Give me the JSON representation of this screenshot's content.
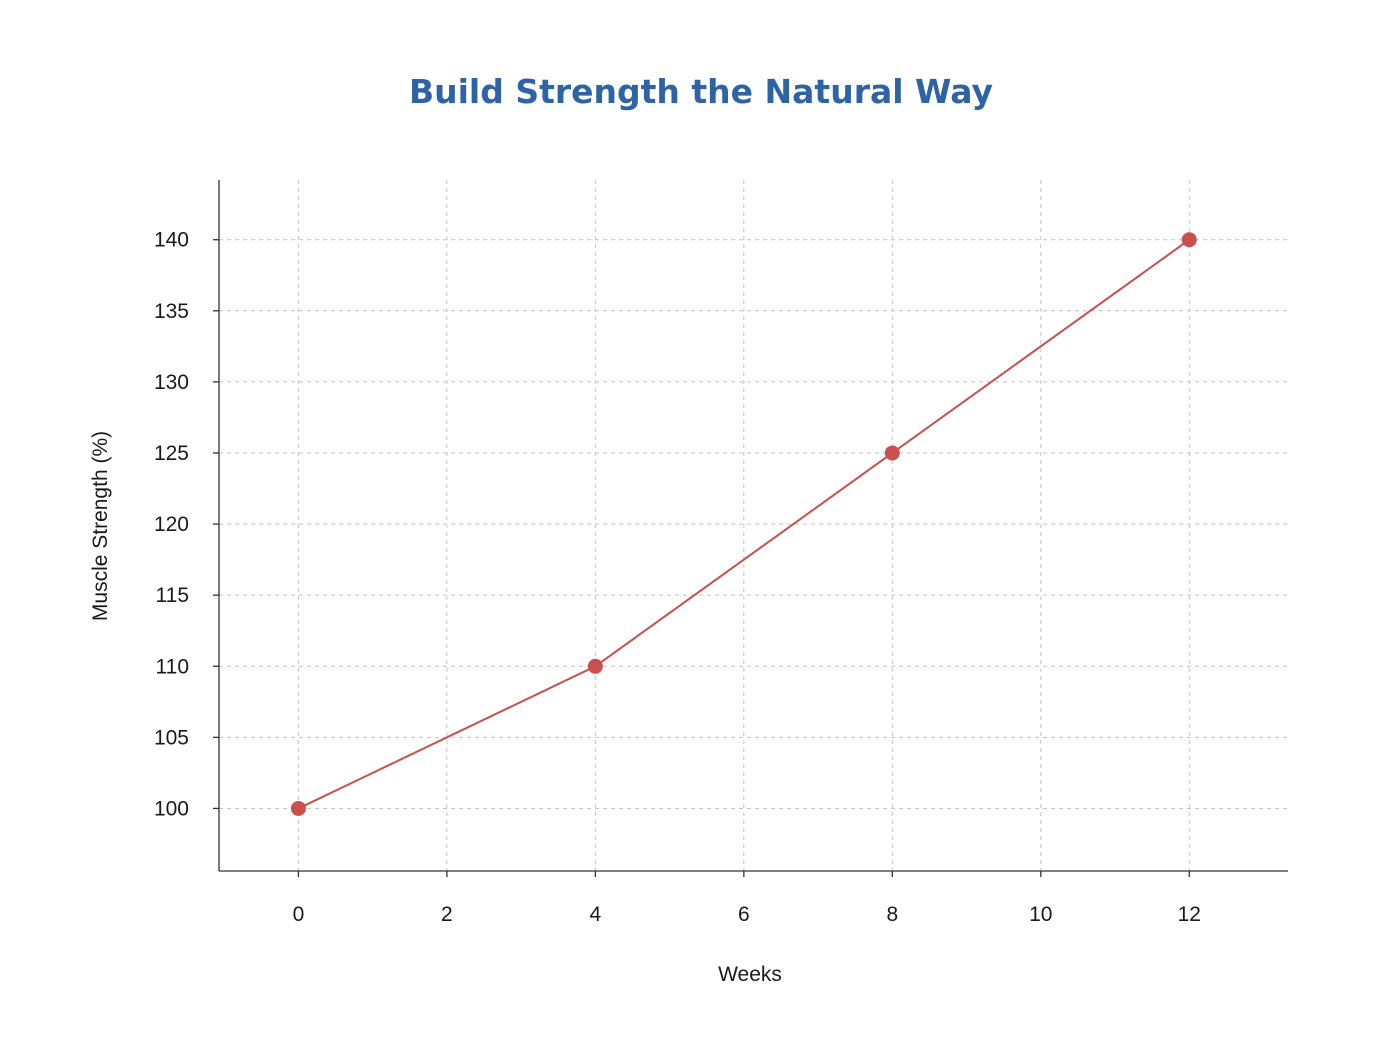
{
  "chart_data": {
    "type": "line",
    "title": "Build Strength the Natural Way",
    "xlabel": "Weeks",
    "ylabel": "Muscle Strength (%)",
    "x": [
      0,
      4,
      8,
      12
    ],
    "series": [
      {
        "values": [
          100,
          110,
          125,
          140
        ]
      }
    ],
    "xlim": [
      -1.07,
      13.33
    ],
    "ylim": [
      95.6,
      144.2
    ],
    "xticks": [
      0,
      2,
      4,
      6,
      8,
      10,
      12
    ],
    "yticks": [
      100,
      105,
      110,
      115,
      120,
      125,
      130,
      135,
      140
    ],
    "grid": true,
    "legend": "none",
    "colors": {
      "title": "#2e64a4",
      "line": "#c9504c",
      "marker": "#c9504c"
    }
  }
}
